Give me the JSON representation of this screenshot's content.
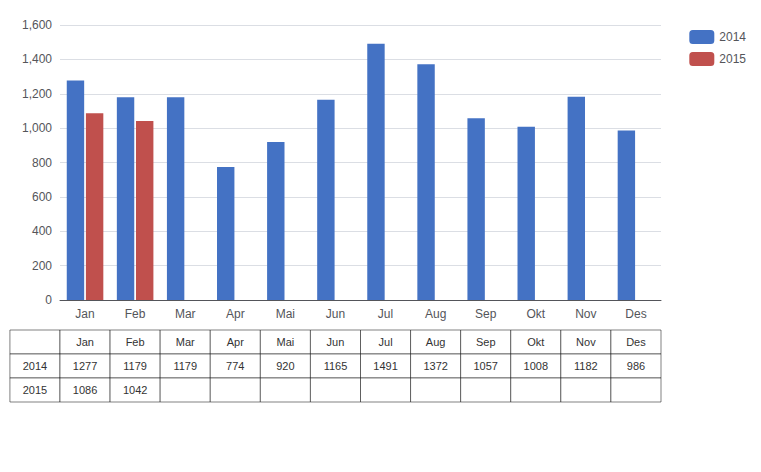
{
  "chart_data": {
    "type": "bar",
    "categories": [
      "Jan",
      "Feb",
      "Mar",
      "Apr",
      "Mai",
      "Jun",
      "Jul",
      "Aug",
      "Sep",
      "Okt",
      "Nov",
      "Des"
    ],
    "series": [
      {
        "name": "2014",
        "color": "#4472C4",
        "values": [
          1277,
          1179,
          1179,
          774,
          920,
          1165,
          1491,
          1372,
          1057,
          1008,
          1182,
          986
        ]
      },
      {
        "name": "2015",
        "color": "#C0504D",
        "values": [
          1086,
          1042,
          null,
          null,
          null,
          null,
          null,
          null,
          null,
          null,
          null,
          null
        ]
      }
    ],
    "ylim": [
      0,
      1600
    ],
    "yticks": [
      0,
      200,
      400,
      600,
      800,
      1000,
      1200,
      1400,
      1600
    ],
    "grid": true,
    "legend": "right"
  }
}
